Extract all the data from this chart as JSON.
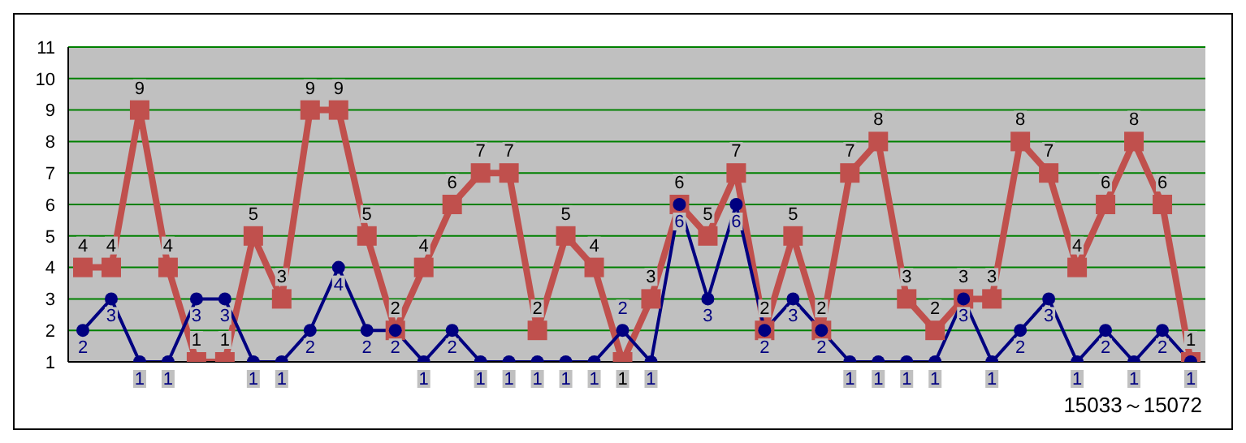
{
  "chart_data": {
    "type": "line",
    "categories": [
      null,
      null,
      null,
      null,
      null,
      null,
      null,
      null,
      null,
      null,
      null,
      null,
      null,
      null,
      null,
      null,
      null,
      null,
      null,
      null,
      null,
      null,
      null,
      null,
      null,
      null,
      null,
      null,
      null,
      null,
      null,
      null,
      null,
      null,
      null,
      null,
      null,
      null,
      null,
      null
    ],
    "series": [
      {
        "color": "#c0504d",
        "marker": "square",
        "values": [
          4,
          4,
          9,
          4,
          1,
          1,
          5,
          3,
          9,
          9,
          5,
          2,
          4,
          6,
          7,
          7,
          2,
          5,
          4,
          1,
          3,
          6,
          5,
          7,
          2,
          5,
          2,
          7,
          8,
          3,
          2,
          3,
          3,
          8,
          7,
          4,
          6,
          8,
          6,
          1
        ]
      },
      {
        "color": "#000080",
        "marker": "circle",
        "values": [
          2,
          3,
          1,
          1,
          3,
          3,
          1,
          1,
          2,
          4,
          2,
          2,
          1,
          2,
          1,
          1,
          1,
          1,
          1,
          2,
          1,
          6,
          3,
          6,
          2,
          3,
          2,
          1,
          1,
          1,
          1,
          3,
          1,
          2,
          3,
          1,
          2,
          1,
          2,
          1
        ]
      }
    ],
    "ylim": [
      1,
      11
    ],
    "yticks": [
      1,
      2,
      3,
      4,
      5,
      6,
      7,
      8,
      9,
      10,
      11
    ],
    "grid": "y",
    "legend": false,
    "data_labels": true,
    "line_style": "solid",
    "annotations": [
      "15033～15072"
    ]
  }
}
